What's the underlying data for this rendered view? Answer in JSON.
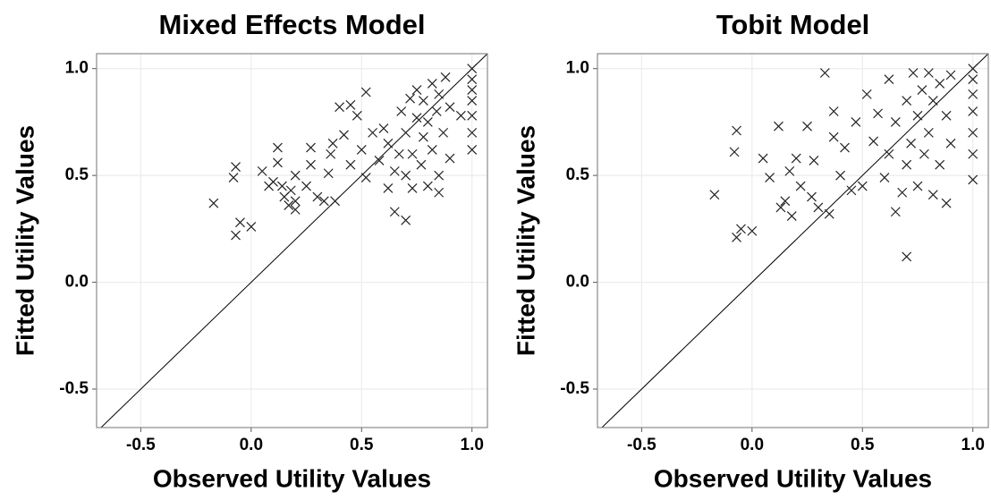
{
  "chart_data": [
    {
      "type": "scatter",
      "title": "Mixed Effects Model",
      "x_label": "Observed Utility Values",
      "y_label": "Fitted Utility Values",
      "xlim": [
        -0.7,
        1.07
      ],
      "ylim": [
        -0.68,
        1.07
      ],
      "xticks": [
        -0.5,
        {
          "value": 0,
          "label": "0.0"
        },
        0.5,
        {
          "value": 1,
          "label": "1.0"
        }
      ],
      "yticks": [
        -0.5,
        {
          "value": 0,
          "label": "0.0"
        },
        0.5,
        {
          "value": 1,
          "label": "1.0"
        }
      ],
      "grid": true,
      "color": "#222222",
      "x": [
        -0.17,
        -0.08,
        -0.07,
        -0.07,
        -0.05,
        0.0,
        0.05,
        0.08,
        0.1,
        0.12,
        0.12,
        0.14,
        0.15,
        0.17,
        0.18,
        0.2,
        0.2,
        0.2,
        0.25,
        0.27,
        0.27,
        0.3,
        0.33,
        0.35,
        0.36,
        0.37,
        0.38,
        0.4,
        0.45,
        0.42,
        0.45,
        0.48,
        0.5,
        0.52,
        0.52,
        0.55,
        0.58,
        0.6,
        0.62,
        0.62,
        0.65,
        0.65,
        0.67,
        0.68,
        0.7,
        0.7,
        0.7,
        0.72,
        0.73,
        0.75,
        0.75,
        0.77,
        0.78,
        0.78,
        0.8,
        0.8,
        0.82,
        0.82,
        0.84,
        0.85,
        0.85,
        0.87,
        0.88,
        0.9,
        0.9,
        1.0,
        1.0,
        1.0,
        1.0,
        1.0,
        1.0,
        1.0,
        0.95,
        0.85,
        0.73
      ],
      "values": [
        0.37,
        0.49,
        0.54,
        0.22,
        0.28,
        0.26,
        0.52,
        0.45,
        0.47,
        0.56,
        0.63,
        0.45,
        0.4,
        0.36,
        0.43,
        0.38,
        0.5,
        0.34,
        0.45,
        0.55,
        0.63,
        0.4,
        0.38,
        0.51,
        0.6,
        0.65,
        0.38,
        0.82,
        0.83,
        0.69,
        0.55,
        0.78,
        0.62,
        0.49,
        0.89,
        0.7,
        0.57,
        0.72,
        0.44,
        0.65,
        0.33,
        0.52,
        0.6,
        0.8,
        0.29,
        0.5,
        0.7,
        0.86,
        0.6,
        0.77,
        0.9,
        0.55,
        0.68,
        0.85,
        0.45,
        0.75,
        0.62,
        0.93,
        0.8,
        0.5,
        0.88,
        0.7,
        0.96,
        0.58,
        0.82,
        0.62,
        0.7,
        0.78,
        0.85,
        0.9,
        0.95,
        1.0,
        0.78,
        0.42,
        0.44
      ]
    },
    {
      "type": "scatter",
      "title": "Tobit Model",
      "x_label": "Observed Utility Values",
      "y_label": "Fitted Utility Values",
      "xlim": [
        -0.7,
        1.07
      ],
      "ylim": [
        -0.68,
        1.07
      ],
      "xticks": [
        -0.5,
        {
          "value": 0,
          "label": "0.0"
        },
        0.5,
        {
          "value": 1,
          "label": "1.0"
        }
      ],
      "yticks": [
        -0.5,
        {
          "value": 0,
          "label": "0.0"
        },
        0.5,
        {
          "value": 1,
          "label": "1.0"
        }
      ],
      "grid": true,
      "color": "#222222",
      "x": [
        -0.17,
        -0.08,
        -0.07,
        -0.07,
        -0.05,
        0.0,
        0.05,
        0.08,
        0.12,
        0.13,
        0.15,
        0.17,
        0.18,
        0.2,
        0.22,
        0.25,
        0.27,
        0.28,
        0.3,
        0.33,
        0.35,
        0.37,
        0.37,
        0.4,
        0.42,
        0.45,
        0.47,
        0.5,
        0.52,
        0.55,
        0.57,
        0.6,
        0.62,
        0.62,
        0.65,
        0.65,
        0.68,
        0.7,
        0.7,
        0.7,
        0.72,
        0.73,
        0.75,
        0.75,
        0.77,
        0.78,
        0.8,
        0.8,
        0.82,
        0.82,
        0.85,
        0.85,
        0.88,
        0.88,
        0.9,
        0.9,
        1.0,
        1.0,
        1.0,
        1.0,
        1.0,
        1.0,
        1.0
      ],
      "values": [
        0.41,
        0.61,
        0.71,
        0.21,
        0.25,
        0.24,
        0.58,
        0.49,
        0.73,
        0.35,
        0.38,
        0.52,
        0.31,
        0.58,
        0.45,
        0.73,
        0.4,
        0.57,
        0.35,
        0.98,
        0.32,
        0.8,
        0.68,
        0.5,
        0.63,
        0.43,
        0.75,
        0.45,
        0.88,
        0.66,
        0.79,
        0.49,
        0.6,
        0.95,
        0.33,
        0.75,
        0.42,
        0.12,
        0.55,
        0.85,
        0.65,
        0.98,
        0.78,
        0.45,
        0.9,
        0.6,
        0.7,
        0.98,
        0.41,
        0.85,
        0.93,
        0.55,
        0.78,
        0.37,
        0.97,
        0.65,
        0.48,
        0.6,
        0.7,
        0.8,
        0.88,
        0.95,
        1.0
      ]
    }
  ]
}
